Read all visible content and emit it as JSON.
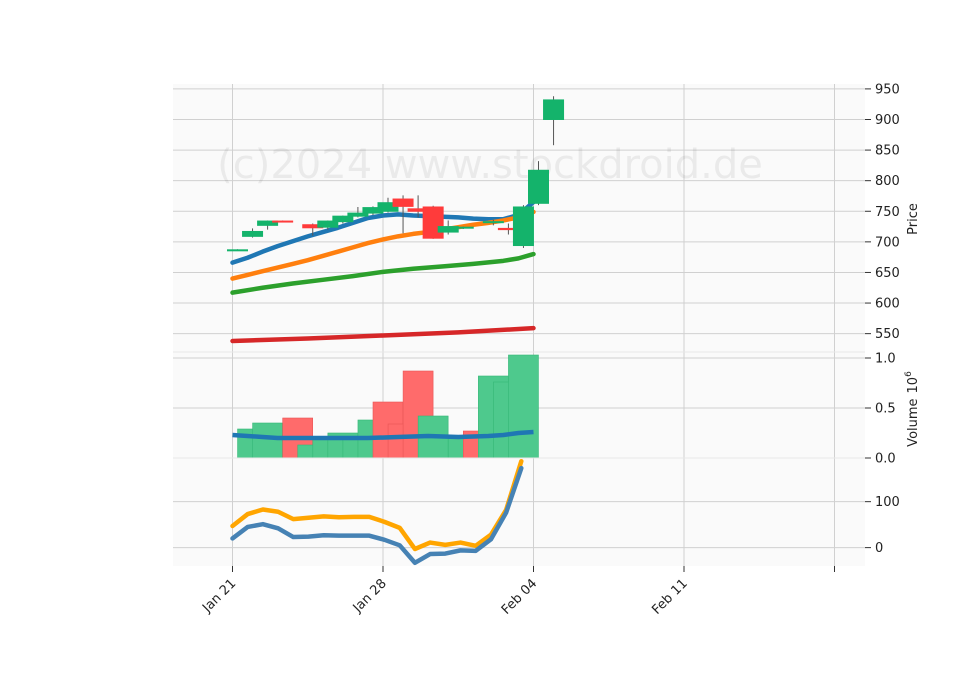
{
  "watermark": "(c)2024 www.stockdroid.de",
  "chart_data": [
    {
      "type": "candlestick",
      "ylabel": "Price",
      "ylim": [
        520,
        958
      ],
      "yticks": [
        550,
        600,
        650,
        700,
        750,
        800,
        850,
        900,
        950
      ],
      "x_labels": [
        "Jan 21",
        "Jan 28",
        "Feb 04",
        "Feb 11"
      ],
      "grid": true,
      "candles": [
        {
          "d": 0,
          "o": 687,
          "h": 688,
          "l": 686,
          "c": 687
        },
        {
          "d": 1,
          "o": 709,
          "h": 722,
          "l": 707,
          "c": 717
        },
        {
          "d": 2,
          "o": 727,
          "h": 735,
          "l": 720,
          "c": 734
        },
        {
          "d": 3,
          "o": 734,
          "h": 735,
          "l": 732,
          "c": 733
        },
        {
          "d": 5,
          "o": 728,
          "h": 730,
          "l": 710,
          "c": 723
        },
        {
          "d": 6,
          "o": 724,
          "h": 735,
          "l": 720,
          "c": 734
        },
        {
          "d": 7,
          "o": 733,
          "h": 743,
          "l": 730,
          "c": 742
        },
        {
          "d": 8,
          "o": 742,
          "h": 757,
          "l": 740,
          "c": 747
        },
        {
          "d": 9,
          "o": 747,
          "h": 758,
          "l": 744,
          "c": 756
        },
        {
          "d": 10,
          "o": 750,
          "h": 772,
          "l": 748,
          "c": 764
        },
        {
          "d": 11,
          "o": 770,
          "h": 776,
          "l": 714,
          "c": 758
        },
        {
          "d": 12,
          "o": 754,
          "h": 776,
          "l": 740,
          "c": 750
        },
        {
          "d": 13,
          "o": 757,
          "h": 759,
          "l": 705,
          "c": 706
        },
        {
          "d": 14,
          "o": 716,
          "h": 735,
          "l": 712,
          "c": 725
        },
        {
          "d": 15,
          "o": 723,
          "h": 725,
          "l": 721,
          "c": 724
        },
        {
          "d": 17,
          "o": 733,
          "h": 736,
          "l": 727,
          "c": 733
        },
        {
          "d": 18,
          "o": 722,
          "h": 730,
          "l": 712,
          "c": 720
        },
        {
          "d": 19,
          "o": 694,
          "h": 760,
          "l": 690,
          "c": 757
        },
        {
          "d": 20,
          "o": 763,
          "h": 832,
          "l": 760,
          "c": 817
        },
        {
          "d": 21,
          "o": 900,
          "h": 938,
          "l": 858,
          "c": 932
        }
      ],
      "moving_averages": [
        {
          "color": "#1f77b4",
          "values": [
            [
              0,
              666
            ],
            [
              1,
              674
            ],
            [
              2,
              684
            ],
            [
              3,
              693
            ],
            [
              4,
              701
            ],
            [
              5,
              709
            ],
            [
              6,
              716
            ],
            [
              7,
              723
            ],
            [
              8,
              731
            ],
            [
              9,
              739
            ],
            [
              10,
              743
            ],
            [
              11,
              745
            ],
            [
              12,
              743
            ],
            [
              13,
              742
            ],
            [
              14,
              741
            ],
            [
              15,
              740
            ],
            [
              16,
              738
            ],
            [
              17,
              737
            ],
            [
              18,
              737
            ],
            [
              19,
              744
            ],
            [
              20,
              765
            ]
          ]
        },
        {
          "color": "#ff7f0e",
          "values": [
            [
              0,
              640
            ],
            [
              1,
              646
            ],
            [
              2,
              652
            ],
            [
              3,
              658
            ],
            [
              4,
              664
            ],
            [
              5,
              670
            ],
            [
              6,
              677
            ],
            [
              7,
              684
            ],
            [
              8,
              691
            ],
            [
              9,
              698
            ],
            [
              10,
              704
            ],
            [
              11,
              709
            ],
            [
              12,
              713
            ],
            [
              13,
              716
            ],
            [
              14,
              720
            ],
            [
              15,
              724
            ],
            [
              16,
              728
            ],
            [
              17,
              731
            ],
            [
              18,
              735
            ],
            [
              19,
              740
            ],
            [
              20,
              749
            ]
          ]
        },
        {
          "color": "#2ca02c",
          "values": [
            [
              0,
              617
            ],
            [
              2,
              625
            ],
            [
              4,
              632
            ],
            [
              6,
              638
            ],
            [
              8,
              644
            ],
            [
              10,
              651
            ],
            [
              12,
              656
            ],
            [
              14,
              660
            ],
            [
              16,
              664
            ],
            [
              18,
              669
            ],
            [
              19,
              673
            ],
            [
              20,
              680
            ]
          ]
        },
        {
          "color": "#d62728",
          "values": [
            [
              0,
              538
            ],
            [
              5,
              542
            ],
            [
              10,
              547
            ],
            [
              15,
              552
            ],
            [
              20,
              559
            ]
          ]
        }
      ]
    },
    {
      "type": "bar",
      "ylabel": "Volume",
      "ylabel_exp": "6",
      "yticks": [
        0.0,
        0.5,
        1.0
      ],
      "ytick_labels": [
        "0.0",
        "0.5",
        "1.0"
      ],
      "ylim": [
        0,
        1.06
      ],
      "bars": [
        {
          "d": 1,
          "v": 0.29,
          "up": true
        },
        {
          "d": 2,
          "v": 0.35,
          "up": true
        },
        {
          "d": 4,
          "v": 0.4,
          "up": false
        },
        {
          "d": 5,
          "v": 0.13,
          "up": true
        },
        {
          "d": 6,
          "v": 0.19,
          "up": true
        },
        {
          "d": 7,
          "v": 0.25,
          "up": true
        },
        {
          "d": 8,
          "v": 0.21,
          "up": true
        },
        {
          "d": 9,
          "v": 0.38,
          "up": true
        },
        {
          "d": 10,
          "v": 0.56,
          "up": false
        },
        {
          "d": 11,
          "v": 0.34,
          "up": false
        },
        {
          "d": 12,
          "v": 0.87,
          "up": false
        },
        {
          "d": 13,
          "v": 0.42,
          "up": true
        },
        {
          "d": 15,
          "v": 0.2,
          "up": true
        },
        {
          "d": 16,
          "v": 0.27,
          "up": false
        },
        {
          "d": 17,
          "v": 0.82,
          "up": true
        },
        {
          "d": 18,
          "v": 0.76,
          "up": true
        },
        {
          "d": 19,
          "v": 1.03,
          "up": true
        }
      ],
      "avg_line": {
        "color": "#1f77b4",
        "values": [
          [
            0,
            0.23
          ],
          [
            2,
            0.21
          ],
          [
            3,
            0.2
          ],
          [
            5,
            0.2
          ],
          [
            7,
            0.2
          ],
          [
            9,
            0.2
          ],
          [
            11,
            0.21
          ],
          [
            13,
            0.22
          ],
          [
            15,
            0.21
          ],
          [
            17,
            0.22
          ],
          [
            18,
            0.23
          ],
          [
            19,
            0.25
          ],
          [
            20,
            0.26
          ]
        ]
      }
    },
    {
      "type": "line",
      "yticks": [
        0,
        100
      ],
      "ylim": [
        -40,
        195
      ],
      "series": [
        {
          "color": "#ffa500",
          "values": [
            [
              0,
              47
            ],
            [
              1,
              73
            ],
            [
              2,
              83
            ],
            [
              3,
              78
            ],
            [
              4,
              62
            ],
            [
              5,
              65
            ],
            [
              6,
              68
            ],
            [
              7,
              66
            ],
            [
              8,
              67
            ],
            [
              9,
              67
            ],
            [
              10,
              56
            ],
            [
              11,
              43
            ],
            [
              12,
              -3
            ],
            [
              13,
              11
            ],
            [
              14,
              6
            ],
            [
              15,
              11
            ],
            [
              16,
              4
            ],
            [
              17,
              28
            ],
            [
              18,
              82
            ],
            [
              19,
              188
            ]
          ]
        },
        {
          "color": "#4682b4",
          "values": [
            [
              0,
              20
            ],
            [
              1,
              45
            ],
            [
              2,
              51
            ],
            [
              3,
              42
            ],
            [
              4,
              23
            ],
            [
              5,
              24
            ],
            [
              6,
              27
            ],
            [
              7,
              26
            ],
            [
              8,
              26
            ],
            [
              9,
              26
            ],
            [
              10,
              17
            ],
            [
              11,
              5
            ],
            [
              12,
              -33
            ],
            [
              13,
              -14
            ],
            [
              14,
              -13
            ],
            [
              15,
              -6
            ],
            [
              16,
              -7
            ],
            [
              17,
              18
            ],
            [
              18,
              76
            ],
            [
              19,
              173
            ]
          ]
        }
      ]
    }
  ]
}
